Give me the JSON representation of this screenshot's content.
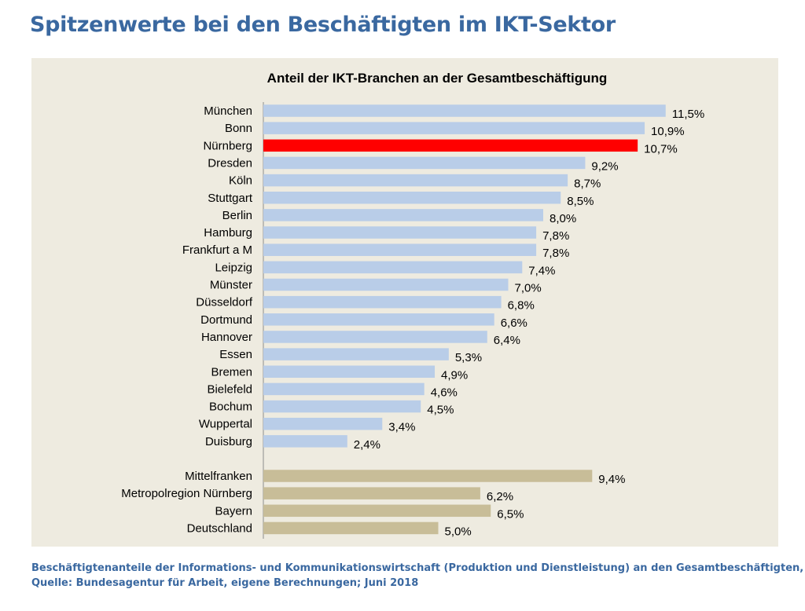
{
  "page": {
    "title": "Spitzenwerte bei den Beschäftigten im IKT-Sektor",
    "footnote_line1": "Beschäftigtenanteile der Informations- und Kommunikationswirtschaft (Produktion und Dienstleistung) an den Gesamtbeschäftigten,",
    "footnote_line2": "Quelle: Bundesagentur für Arbeit, eigene Berechnungen; Juni 2018"
  },
  "colors": {
    "city_bar": "#b9cde8",
    "highlight_bar": "#ff0000",
    "region_bar": "#c8bd98",
    "panel_background": "#eeebe0",
    "title_blue": "#3a68a0"
  },
  "chart_data": {
    "type": "bar",
    "orientation": "horizontal",
    "title": "Anteil der IKT-Branchen an der Gesamtbeschäftigung",
    "xlim": [
      0,
      12
    ],
    "grid": false,
    "value_format": "percent, comma decimal",
    "groups": [
      {
        "bar_color": "city_bar",
        "categories": [
          "München",
          "Bonn",
          "Nürnberg",
          "Dresden",
          "Köln",
          "Stuttgart",
          "Berlin",
          "Hamburg",
          "Frankfurt a M",
          "Leipzig",
          "Münster",
          "Düsseldorf",
          "Dortmund",
          "Hannover",
          "Essen",
          "Bremen",
          "Bielefeld",
          "Bochum",
          "Wuppertal",
          "Duisburg"
        ],
        "values": [
          11.5,
          10.9,
          10.7,
          9.2,
          8.7,
          8.5,
          8.0,
          7.8,
          7.8,
          7.4,
          7.0,
          6.8,
          6.6,
          6.4,
          5.3,
          4.9,
          4.6,
          4.5,
          3.4,
          2.4
        ],
        "labels": [
          "11,5%",
          "10,9%",
          "10,7%",
          "9,2%",
          "8,7%",
          "8,5%",
          "8,0%",
          "7,8%",
          "7,8%",
          "7,4%",
          "7,0%",
          "6,8%",
          "6,6%",
          "6,4%",
          "5,3%",
          "4,9%",
          "4,6%",
          "4,5%",
          "3,4%",
          "2,4%"
        ],
        "highlight": "Nürnberg"
      },
      {
        "bar_color": "region_bar",
        "categories": [
          "Mittelfranken",
          "Metropolregion Nürnberg",
          "Bayern",
          "Deutschland"
        ],
        "values": [
          9.4,
          6.2,
          6.5,
          5.0
        ],
        "labels": [
          "9,4%",
          "6,2%",
          "6,5%",
          "5,0%"
        ]
      }
    ]
  }
}
